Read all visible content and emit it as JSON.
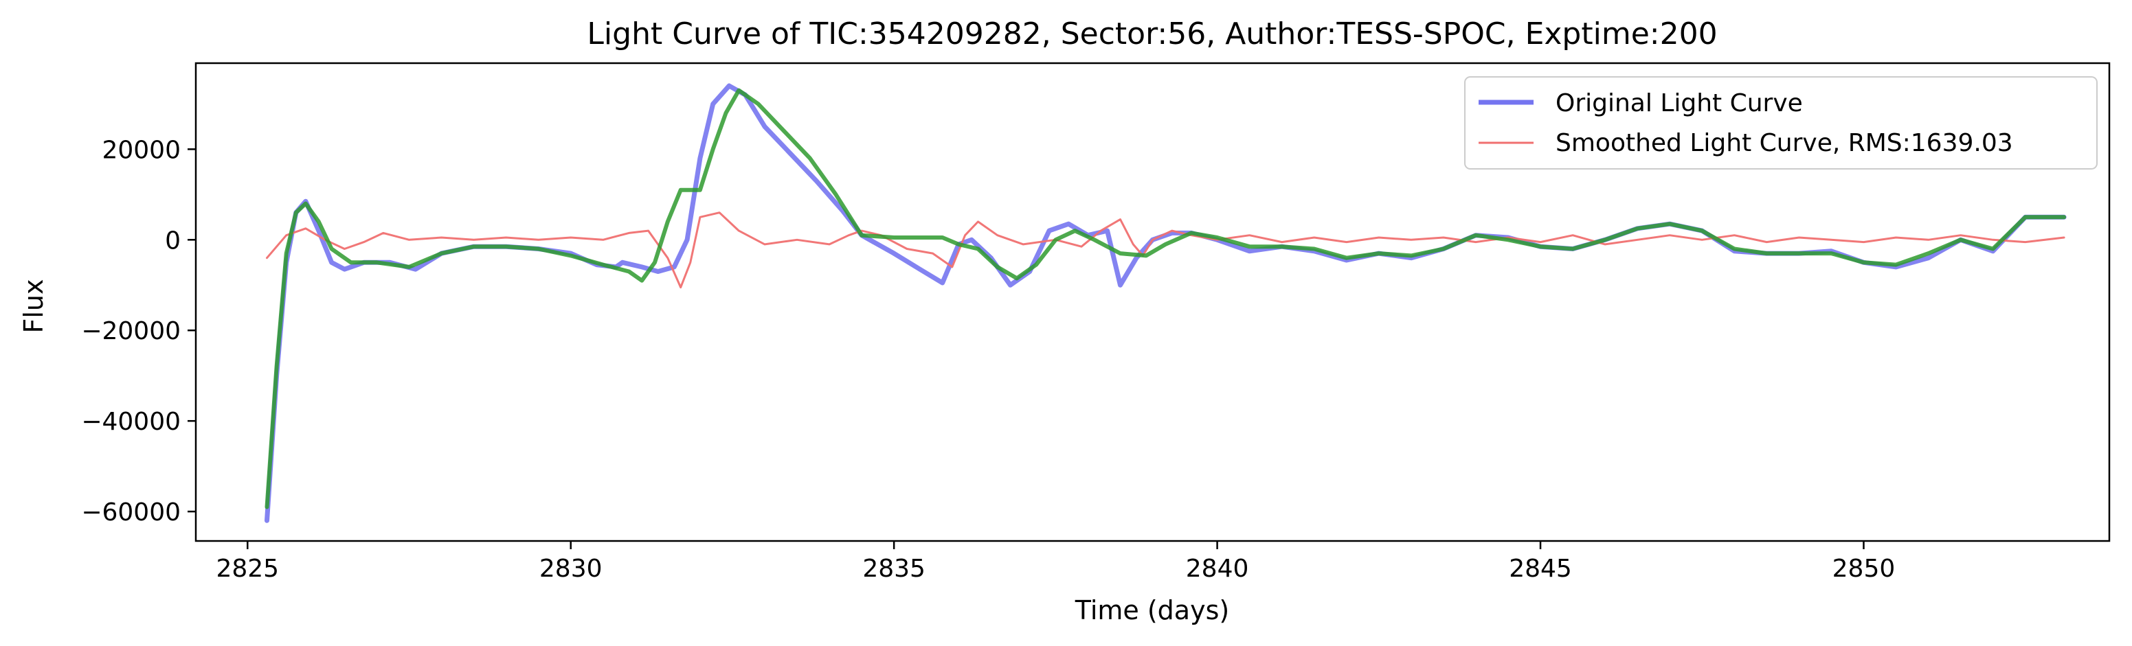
{
  "chart_data": {
    "type": "line",
    "title": "Light Curve of TIC:354209282, Sector:56, Author:TESS-SPOC, Exptime:200",
    "xlabel": "Time (days)",
    "ylabel": "Flux",
    "xlim": [
      2824.2,
      2853.8
    ],
    "ylim": [
      -66500,
      39000
    ],
    "xticks": [
      2825,
      2830,
      2835,
      2840,
      2845,
      2850
    ],
    "yticks": [
      -60000,
      -40000,
      -20000,
      0,
      20000
    ],
    "xtick_labels": [
      "2825",
      "2830",
      "2835",
      "2840",
      "2845",
      "2850"
    ],
    "ytick_labels": [
      "−60000",
      "−40000",
      "−20000",
      "0",
      "20000"
    ],
    "grid": false,
    "legend_position": "top-right",
    "legend": [
      "Original Light Curve",
      "Smoothed Light Curve, RMS:1639.03"
    ],
    "series": [
      {
        "name": "Original Light Curve",
        "color": "#7575f0",
        "x": [
          2825.3,
          2825.45,
          2825.6,
          2825.75,
          2825.9,
          2826.1,
          2826.3,
          2826.5,
          2826.8,
          2827.2,
          2827.6,
          2828.0,
          2828.5,
          2829.0,
          2829.5,
          2830.0,
          2830.4,
          2830.7,
          2830.8,
          2831.1,
          2831.35,
          2831.6,
          2831.8,
          2832.0,
          2832.2,
          2832.45,
          2832.7,
          2833.0,
          2833.4,
          2833.8,
          2834.2,
          2834.5,
          2835.0,
          2835.4,
          2835.75,
          2836.0,
          2836.2,
          2836.5,
          2836.8,
          2837.1,
          2837.4,
          2837.7,
          2838.0,
          2838.3,
          2838.5,
          2838.75,
          2839.0,
          2839.3,
          2839.6,
          2840.0,
          2840.5,
          2841.0,
          2841.5,
          2842.0,
          2842.5,
          2843.0,
          2843.5,
          2844.0,
          2844.5,
          2845.0,
          2845.5,
          2846.0,
          2846.5,
          2847.0,
          2847.5,
          2848.0,
          2848.5,
          2849.0,
          2849.5,
          2850.0,
          2850.5,
          2851.0,
          2851.5,
          2852.0,
          2852.5,
          2853.1
        ],
        "values": [
          -62000,
          -30000,
          -5000,
          6000,
          8500,
          2000,
          -5000,
          -6500,
          -5000,
          -5000,
          -6500,
          -3000,
          -1500,
          -1500,
          -2000,
          -3000,
          -5500,
          -6000,
          -5000,
          -6000,
          -7000,
          -6000,
          0,
          18000,
          30000,
          34000,
          32000,
          25000,
          19000,
          13000,
          6500,
          1000,
          -3000,
          -6500,
          -9500,
          -1000,
          0,
          -4000,
          -10000,
          -7000,
          2000,
          3500,
          1000,
          2000,
          -10000,
          -4000,
          0,
          1500,
          1500,
          0,
          -2500,
          -1500,
          -2500,
          -4500,
          -3000,
          -4000,
          -2000,
          1000,
          500,
          -1500,
          -2000,
          0,
          2500,
          3500,
          2000,
          -2500,
          -3000,
          -3000,
          -2500,
          -5000,
          -6000,
          -4000,
          0,
          -2500,
          5000,
          5000
        ]
      },
      {
        "name": "Smoothed Light Curve, RMS:1639.03",
        "color": "#f07070",
        "x": [
          2825.3,
          2825.6,
          2825.9,
          2826.2,
          2826.5,
          2826.8,
          2827.1,
          2827.5,
          2828.0,
          2828.5,
          2829.0,
          2829.5,
          2830.0,
          2830.5,
          2830.9,
          2831.2,
          2831.5,
          2831.7,
          2831.85,
          2832.0,
          2832.3,
          2832.6,
          2833.0,
          2833.5,
          2834.0,
          2834.3,
          2834.5,
          2834.8,
          2835.2,
          2835.6,
          2835.9,
          2836.1,
          2836.3,
          2836.6,
          2837.0,
          2837.5,
          2837.9,
          2838.2,
          2838.5,
          2838.7,
          2838.85,
          2839.0,
          2839.3,
          2839.6,
          2840.0,
          2840.5,
          2841.0,
          2841.5,
          2842.0,
          2842.5,
          2843.0,
          2843.5,
          2844.0,
          2844.5,
          2845.0,
          2845.5,
          2846.0,
          2846.5,
          2847.0,
          2847.5,
          2848.0,
          2848.5,
          2849.0,
          2849.5,
          2850.0,
          2850.5,
          2851.0,
          2851.5,
          2852.0,
          2852.5,
          2853.1
        ],
        "values": [
          -4000,
          1000,
          2500,
          0,
          -2000,
          -500,
          1500,
          0,
          500,
          0,
          500,
          0,
          500,
          0,
          1500,
          2000,
          -4000,
          -10500,
          -5000,
          5000,
          6000,
          2000,
          -1000,
          0,
          -1000,
          1000,
          2000,
          1000,
          -2000,
          -3000,
          -6000,
          1000,
          4000,
          1000,
          -1000,
          0,
          -1500,
          2000,
          4500,
          -1000,
          -3500,
          0,
          2000,
          1000,
          0,
          1000,
          -500,
          500,
          -500,
          500,
          0,
          500,
          -500,
          500,
          -500,
          1000,
          -1000,
          0,
          1000,
          0,
          1000,
          -500,
          500,
          0,
          -500,
          500,
          0,
          1000,
          0,
          -500,
          500
        ]
      },
      {
        "name": "",
        "color": "#2e9a2e",
        "x": [
          2825.3,
          2825.45,
          2825.6,
          2825.75,
          2825.9,
          2826.1,
          2826.3,
          2826.6,
          2827.0,
          2827.5,
          2828.0,
          2828.5,
          2829.0,
          2829.5,
          2830.0,
          2830.5,
          2830.9,
          2831.1,
          2831.3,
          2831.5,
          2831.7,
          2831.8,
          2832.0,
          2832.2,
          2832.4,
          2832.6,
          2832.9,
          2833.3,
          2833.7,
          2834.1,
          2834.5,
          2835.0,
          2835.5,
          2835.75,
          2836.0,
          2836.3,
          2836.6,
          2836.9,
          2837.2,
          2837.5,
          2837.8,
          2838.1,
          2838.5,
          2838.9,
          2839.2,
          2839.6,
          2840.0,
          2840.5,
          2841.0,
          2841.5,
          2842.0,
          2842.5,
          2843.0,
          2843.5,
          2844.0,
          2844.5,
          2845.0,
          2845.5,
          2846.0,
          2846.5,
          2847.0,
          2847.5,
          2848.0,
          2848.5,
          2849.0,
          2849.5,
          2850.0,
          2850.5,
          2851.0,
          2851.5,
          2852.0,
          2852.5,
          2853.1
        ],
        "values": [
          -59000,
          -28000,
          -3000,
          6000,
          8000,
          4000,
          -2000,
          -5000,
          -5000,
          -6000,
          -3000,
          -1500,
          -1500,
          -2000,
          -3500,
          -5500,
          -7000,
          -9000,
          -5000,
          4000,
          11000,
          11000,
          11000,
          20000,
          28000,
          33000,
          30000,
          24000,
          18000,
          10000,
          1000,
          500,
          500,
          500,
          -1000,
          -2000,
          -6000,
          -8500,
          -5500,
          0,
          2000,
          0,
          -3000,
          -3500,
          -1000,
          1500,
          500,
          -1500,
          -1500,
          -2000,
          -4000,
          -3000,
          -3500,
          -2000,
          1000,
          0,
          -1500,
          -2000,
          0,
          2500,
          3500,
          2000,
          -2000,
          -3000,
          -3000,
          -3000,
          -5000,
          -5500,
          -3000,
          0,
          -2000,
          5000,
          5000
        ]
      }
    ]
  }
}
